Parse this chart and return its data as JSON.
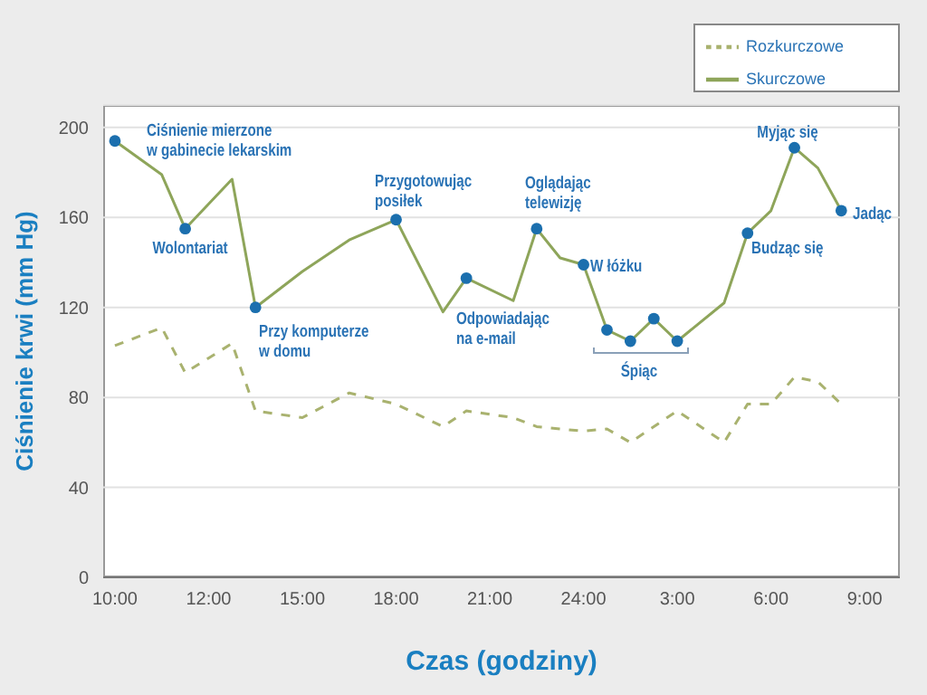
{
  "chart_data": {
    "type": "line",
    "xlabel": "Czas (godziny)",
    "ylabel": "Ciśnienie krwi (mm Hg)",
    "categories": [
      "10:00",
      null,
      null,
      null,
      "12:00",
      null,
      null,
      null,
      "15:00",
      null,
      null,
      null,
      "18:00",
      null,
      null,
      null,
      "21:00",
      null,
      null,
      null,
      "24:00",
      null,
      null,
      null,
      "3:00",
      null,
      null,
      null,
      "6:00",
      null,
      null,
      null,
      "9:00",
      null
    ],
    "ylim": [
      0,
      210
    ],
    "yticks": [
      0,
      40,
      80,
      120,
      160,
      200
    ],
    "grid": "y",
    "legend": "top right",
    "series": [
      {
        "name": "Skurczowe",
        "color": "#8ea55a",
        "line_style": "solid",
        "values": [
          194,
          null,
          179,
          155,
          null,
          177,
          120,
          null,
          136,
          null,
          150,
          null,
          159,
          null,
          118,
          133,
          null,
          123,
          155,
          142,
          139,
          110,
          105,
          115,
          105,
          null,
          122,
          153,
          163,
          191,
          182,
          163,
          null,
          null
        ]
      },
      {
        "name": "Rozkurczowe",
        "color": "#a9b26f",
        "line_style": "dashed",
        "values": [
          103,
          null,
          111,
          91,
          null,
          104,
          74,
          null,
          71,
          null,
          82,
          null,
          77,
          null,
          67,
          74,
          null,
          71,
          67,
          null,
          65,
          66,
          60,
          null,
          74,
          null,
          60,
          77,
          77,
          89,
          87,
          77,
          null,
          null
        ]
      },
      {
        "type": "scatter",
        "color": "#1b6fae",
        "values": [
          194,
          null,
          null,
          155,
          null,
          null,
          120,
          null,
          null,
          null,
          null,
          null,
          159,
          null,
          null,
          133,
          null,
          null,
          155,
          null,
          139,
          110,
          105,
          115,
          105,
          null,
          null,
          153,
          null,
          191,
          null,
          163,
          null,
          null
        ]
      }
    ],
    "annotations": [
      "Ciśnienie mierzone\nw gabinecie lekarskim",
      "Wolontariat",
      "Przy komputerze\nw domu",
      "Przygotowując\nposiłek",
      "Odpowiadając\nna e-mail",
      "Oglądając\ntelewizję",
      "W łóżku",
      "Śpiąc",
      "Budząc się",
      "Myjąc się",
      "Jadąc"
    ]
  }
}
